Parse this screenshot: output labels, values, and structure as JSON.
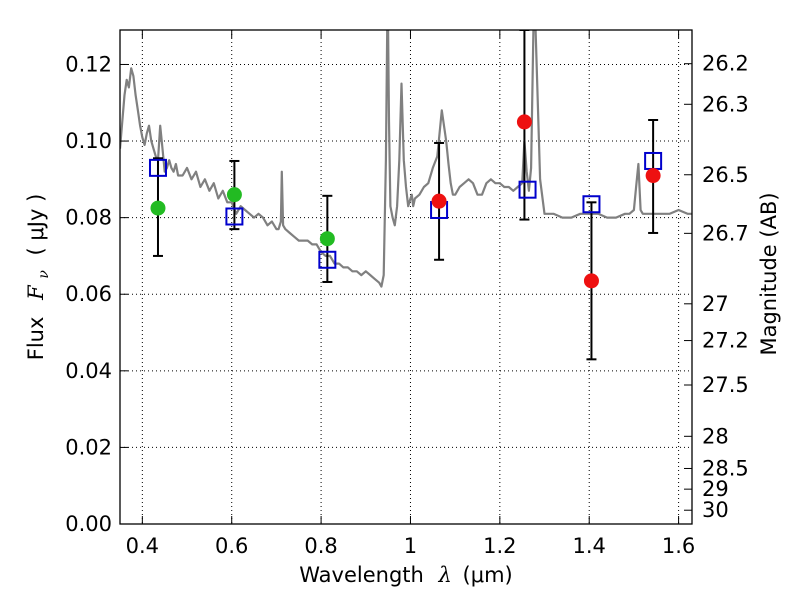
{
  "chart_data": {
    "type": "scatter",
    "xlabel": {
      "prefix": "Wavelength",
      "symbol": "λ",
      "unit": "(μm)"
    },
    "ylabel": {
      "prefix": "Flux",
      "symbol": "F",
      "subscript": "ν",
      "unit": "( μJy )"
    },
    "y2label": "Magnitude (AB)",
    "xlim": [
      0.35,
      1.63
    ],
    "ylim": [
      0.0,
      0.129
    ],
    "grid": true,
    "x_ticks": [
      0.4,
      0.6,
      0.8,
      1.0,
      1.2,
      1.4,
      1.6
    ],
    "x_tick_labels": [
      "0.4",
      "0.6",
      "0.8",
      "1",
      "1.2",
      "1.4",
      "1.6"
    ],
    "y_ticks": [
      0.0,
      0.02,
      0.04,
      0.06,
      0.08,
      0.1,
      0.12
    ],
    "y_tick_labels": [
      "0.00",
      "0.02",
      "0.04",
      "0.06",
      "0.08",
      "0.10",
      "0.12"
    ],
    "y2_ticks": [
      {
        "label": "26.2",
        "flux": 0.1202
      },
      {
        "label": "26.3",
        "flux": 0.1096
      },
      {
        "label": "26.5",
        "flux": 0.0912
      },
      {
        "label": "26.7",
        "flux": 0.0759
      },
      {
        "label": "27",
        "flux": 0.0575
      },
      {
        "label": "27.2",
        "flux": 0.0479
      },
      {
        "label": "27.5",
        "flux": 0.0363
      },
      {
        "label": "28",
        "flux": 0.0229
      },
      {
        "label": "28.5",
        "flux": 0.0145
      },
      {
        "label": "29",
        "flux": 0.0091
      },
      {
        "label": "30",
        "flux": 0.0036
      }
    ],
    "colors": {
      "template": "#808080",
      "green_points": "#22bb22",
      "red_points": "#ee1111",
      "model_squares": "#0000cc",
      "errorbars": "#000000",
      "grid": "#000000"
    },
    "series": [
      {
        "kind": "spectrum",
        "x": [
          0.35,
          0.36,
          0.365,
          0.37,
          0.375,
          0.38,
          0.385,
          0.39,
          0.395,
          0.4,
          0.405,
          0.41,
          0.415,
          0.42,
          0.425,
          0.43,
          0.435,
          0.44,
          0.445,
          0.45,
          0.455,
          0.46,
          0.465,
          0.47,
          0.475,
          0.48,
          0.49,
          0.5,
          0.51,
          0.52,
          0.53,
          0.54,
          0.55,
          0.56,
          0.57,
          0.58,
          0.59,
          0.6,
          0.61,
          0.62,
          0.63,
          0.64,
          0.65,
          0.66,
          0.67,
          0.68,
          0.69,
          0.7,
          0.705,
          0.71,
          0.712,
          0.715,
          0.72,
          0.73,
          0.74,
          0.75,
          0.76,
          0.77,
          0.78,
          0.79,
          0.8,
          0.81,
          0.82,
          0.83,
          0.84,
          0.85,
          0.86,
          0.87,
          0.88,
          0.89,
          0.9,
          0.91,
          0.92,
          0.93,
          0.935,
          0.94,
          0.945,
          0.948,
          0.95,
          0.952,
          0.955,
          0.96,
          0.965,
          0.97,
          0.975,
          0.98,
          0.985,
          0.99,
          0.995,
          1.0,
          1.003,
          1.006,
          1.01,
          1.02,
          1.03,
          1.04,
          1.05,
          1.06,
          1.07,
          1.08,
          1.085,
          1.09,
          1.095,
          1.1,
          1.11,
          1.12,
          1.13,
          1.14,
          1.15,
          1.16,
          1.17,
          1.18,
          1.19,
          1.2,
          1.21,
          1.22,
          1.23,
          1.24,
          1.25,
          1.255,
          1.26,
          1.265,
          1.27,
          1.275,
          1.28,
          1.29,
          1.3,
          1.32,
          1.34,
          1.36,
          1.38,
          1.4,
          1.42,
          1.44,
          1.46,
          1.48,
          1.49,
          1.5,
          1.505,
          1.51,
          1.515,
          1.52,
          1.53,
          1.55,
          1.58,
          1.6,
          1.62,
          1.63
        ],
        "y": [
          0.098,
          0.112,
          0.116,
          0.114,
          0.119,
          0.117,
          0.112,
          0.108,
          0.104,
          0.101,
          0.099,
          0.102,
          0.104,
          0.1,
          0.098,
          0.096,
          0.095,
          0.104,
          0.098,
          0.092,
          0.093,
          0.095,
          0.093,
          0.092,
          0.094,
          0.091,
          0.091,
          0.093,
          0.09,
          0.092,
          0.088,
          0.09,
          0.087,
          0.089,
          0.085,
          0.087,
          0.084,
          0.084,
          0.081,
          0.083,
          0.082,
          0.081,
          0.08,
          0.081,
          0.08,
          0.078,
          0.079,
          0.077,
          0.077,
          0.079,
          0.092,
          0.078,
          0.077,
          0.076,
          0.075,
          0.074,
          0.074,
          0.074,
          0.073,
          0.073,
          0.071,
          0.07,
          0.07,
          0.068,
          0.068,
          0.067,
          0.067,
          0.066,
          0.066,
          0.065,
          0.066,
          0.065,
          0.064,
          0.063,
          0.062,
          0.065,
          0.095,
          0.129,
          0.129,
          0.105,
          0.083,
          0.08,
          0.078,
          0.083,
          0.095,
          0.115,
          0.095,
          0.088,
          0.083,
          0.085,
          0.086,
          0.083,
          0.085,
          0.086,
          0.088,
          0.089,
          0.093,
          0.096,
          0.108,
          0.1,
          0.094,
          0.089,
          0.086,
          0.086,
          0.088,
          0.089,
          0.09,
          0.089,
          0.086,
          0.086,
          0.089,
          0.09,
          0.089,
          0.089,
          0.088,
          0.088,
          0.087,
          0.088,
          0.089,
          0.1,
          0.092,
          0.087,
          0.093,
          0.129,
          0.129,
          0.09,
          0.081,
          0.081,
          0.08,
          0.08,
          0.081,
          0.081,
          0.081,
          0.08,
          0.08,
          0.081,
          0.081,
          0.082,
          0.088,
          0.094,
          0.082,
          0.081,
          0.081,
          0.081,
          0.081,
          0.082,
          0.081,
          0.081
        ]
      },
      {
        "kind": "points",
        "marker": "circle",
        "color": "green",
        "points": [
          {
            "x": 0.435,
            "y": 0.0825,
            "err_low": 0.07,
            "err_high": 0.0955
          },
          {
            "x": 0.606,
            "y": 0.086,
            "err_low": 0.077,
            "err_high": 0.0948
          },
          {
            "x": 0.814,
            "y": 0.0745,
            "err_low": 0.0632,
            "err_high": 0.0857
          }
        ]
      },
      {
        "kind": "points",
        "marker": "circle",
        "color": "red",
        "points": [
          {
            "x": 1.064,
            "y": 0.0843,
            "err_low": 0.069,
            "err_high": 0.0995
          },
          {
            "x": 1.255,
            "y": 0.105,
            "err_low": 0.0795,
            "err_high": 0.129
          },
          {
            "x": 1.405,
            "y": 0.0635,
            "err_low": 0.043,
            "err_high": 0.084
          },
          {
            "x": 1.543,
            "y": 0.091,
            "err_low": 0.076,
            "err_high": 0.1055
          }
        ]
      },
      {
        "kind": "points",
        "marker": "square",
        "color": "blue",
        "points": [
          {
            "x": 0.435,
            "y": 0.093
          },
          {
            "x": 0.606,
            "y": 0.0803
          },
          {
            "x": 0.814,
            "y": 0.069
          },
          {
            "x": 1.064,
            "y": 0.082
          },
          {
            "x": 1.262,
            "y": 0.0873
          },
          {
            "x": 1.405,
            "y": 0.0835
          },
          {
            "x": 1.543,
            "y": 0.0948
          }
        ]
      }
    ]
  }
}
